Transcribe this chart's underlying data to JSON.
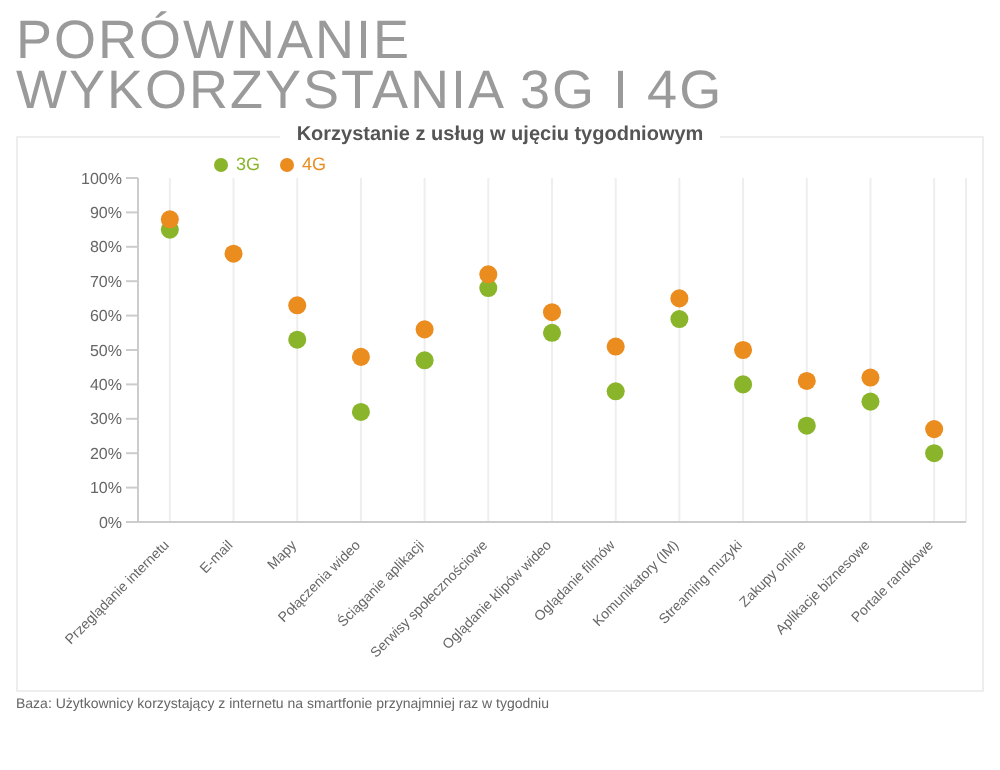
{
  "chart_data": {
    "type": "scatter",
    "title": "PORÓWNANIE WYKORZYSTANIA 3G I 4G",
    "subtitle": "Korzystanie z usług w ujęciu tygodniowym",
    "categories": [
      "Przeglądanie internetu",
      "E-mail",
      "Mapy",
      "Połączenia wideo",
      "Ściąganie aplikacji",
      "Serwisy społecznościowe",
      "Oglądanie klipów wideo",
      "Oglądanie filmów",
      "Komunikatory (IM)",
      "Streaming muzyki",
      "Zakupy online",
      "Aplikacje biznesowe",
      "Portale randkowe"
    ],
    "series": [
      {
        "name": "3G",
        "color": "#8ab52a",
        "values": [
          85,
          null,
          53,
          32,
          47,
          68,
          55,
          38,
          59,
          40,
          28,
          35,
          20
        ]
      },
      {
        "name": "4G",
        "color": "#eb8c1e",
        "values": [
          88,
          78,
          63,
          48,
          56,
          72,
          61,
          51,
          65,
          50,
          41,
          42,
          27
        ]
      }
    ],
    "ylim": [
      0,
      100
    ],
    "yticks": [
      {
        "value": 0,
        "label": "0%"
      },
      {
        "value": 10,
        "label": "10%"
      },
      {
        "value": 20,
        "label": "20%"
      },
      {
        "value": 30,
        "label": "30%"
      },
      {
        "value": 40,
        "label": "40%"
      },
      {
        "value": 50,
        "label": "50%"
      },
      {
        "value": 60,
        "label": "60%"
      },
      {
        "value": 70,
        "label": "70%"
      },
      {
        "value": 80,
        "label": "80%"
      },
      {
        "value": 90,
        "label": "90%"
      },
      {
        "value": 100,
        "label": "100%"
      }
    ],
    "grid": "x",
    "legend": "top left",
    "marker": "circle",
    "annotations": [
      "Baza: Użytkownicy korzystający z internetu na smartfonie przynajmniej raz w tygodniu"
    ]
  }
}
